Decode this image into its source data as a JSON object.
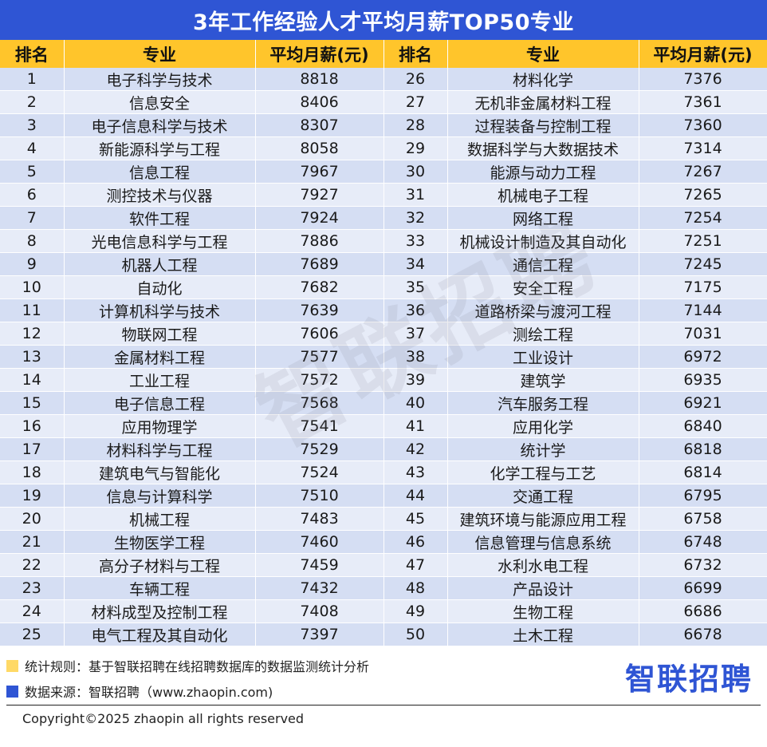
{
  "title": "3年工作经验人才平均月薪TOP50专业",
  "headers": {
    "rank": "排名",
    "major": "专业",
    "salary": "平均月薪(元)"
  },
  "rows": [
    {
      "rank": "1",
      "major": "电子科学与技术",
      "salary": "8818"
    },
    {
      "rank": "2",
      "major": "信息安全",
      "salary": "8406"
    },
    {
      "rank": "3",
      "major": "电子信息科学与技术",
      "salary": "8307"
    },
    {
      "rank": "4",
      "major": "新能源科学与工程",
      "salary": "8058"
    },
    {
      "rank": "5",
      "major": "信息工程",
      "salary": "7967"
    },
    {
      "rank": "6",
      "major": "测控技术与仪器",
      "salary": "7927"
    },
    {
      "rank": "7",
      "major": "软件工程",
      "salary": "7924"
    },
    {
      "rank": "8",
      "major": "光电信息科学与工程",
      "salary": "7886"
    },
    {
      "rank": "9",
      "major": "机器人工程",
      "salary": "7689"
    },
    {
      "rank": "10",
      "major": "自动化",
      "salary": "7682"
    },
    {
      "rank": "11",
      "major": "计算机科学与技术",
      "salary": "7639"
    },
    {
      "rank": "12",
      "major": "物联网工程",
      "salary": "7606"
    },
    {
      "rank": "13",
      "major": "金属材料工程",
      "salary": "7577"
    },
    {
      "rank": "14",
      "major": "工业工程",
      "salary": "7572"
    },
    {
      "rank": "15",
      "major": "电子信息工程",
      "salary": "7568"
    },
    {
      "rank": "16",
      "major": "应用物理学",
      "salary": "7541"
    },
    {
      "rank": "17",
      "major": "材料科学与工程",
      "salary": "7529"
    },
    {
      "rank": "18",
      "major": "建筑电气与智能化",
      "salary": "7524"
    },
    {
      "rank": "19",
      "major": "信息与计算科学",
      "salary": "7510"
    },
    {
      "rank": "20",
      "major": "机械工程",
      "salary": "7483"
    },
    {
      "rank": "21",
      "major": "生物医学工程",
      "salary": "7460"
    },
    {
      "rank": "22",
      "major": "高分子材料与工程",
      "salary": "7459"
    },
    {
      "rank": "23",
      "major": "车辆工程",
      "salary": "7432"
    },
    {
      "rank": "24",
      "major": "材料成型及控制工程",
      "salary": "7408"
    },
    {
      "rank": "25",
      "major": "电气工程及其自动化",
      "salary": "7397"
    },
    {
      "rank": "26",
      "major": "材料化学",
      "salary": "7376"
    },
    {
      "rank": "27",
      "major": "无机非金属材料工程",
      "salary": "7361"
    },
    {
      "rank": "28",
      "major": "过程装备与控制工程",
      "salary": "7360"
    },
    {
      "rank": "29",
      "major": "数据科学与大数据技术",
      "salary": "7314"
    },
    {
      "rank": "30",
      "major": "能源与动力工程",
      "salary": "7267"
    },
    {
      "rank": "31",
      "major": "机械电子工程",
      "salary": "7265"
    },
    {
      "rank": "32",
      "major": "网络工程",
      "salary": "7254"
    },
    {
      "rank": "33",
      "major": "机械设计制造及其自动化",
      "salary": "7251"
    },
    {
      "rank": "34",
      "major": "通信工程",
      "salary": "7245"
    },
    {
      "rank": "35",
      "major": "安全工程",
      "salary": "7175"
    },
    {
      "rank": "36",
      "major": "道路桥梁与渡河工程",
      "salary": "7144"
    },
    {
      "rank": "37",
      "major": "测绘工程",
      "salary": "7031"
    },
    {
      "rank": "38",
      "major": "工业设计",
      "salary": "6972"
    },
    {
      "rank": "39",
      "major": "建筑学",
      "salary": "6935"
    },
    {
      "rank": "40",
      "major": "汽车服务工程",
      "salary": "6921"
    },
    {
      "rank": "41",
      "major": "应用化学",
      "salary": "6840"
    },
    {
      "rank": "42",
      "major": "统计学",
      "salary": "6818"
    },
    {
      "rank": "43",
      "major": "化学工程与工艺",
      "salary": "6814"
    },
    {
      "rank": "44",
      "major": "交通工程",
      "salary": "6795"
    },
    {
      "rank": "45",
      "major": "建筑环境与能源应用工程",
      "salary": "6758"
    },
    {
      "rank": "46",
      "major": "信息管理与信息系统",
      "salary": "6748"
    },
    {
      "rank": "47",
      "major": "水利水电工程",
      "salary": "6732"
    },
    {
      "rank": "48",
      "major": "产品设计",
      "salary": "6699"
    },
    {
      "rank": "49",
      "major": "生物工程",
      "salary": "6686"
    },
    {
      "rank": "50",
      "major": "土木工程",
      "salary": "6678"
    }
  ],
  "watermark": "智联招聘",
  "footer": {
    "rule": "统计规则：基于智联招聘在线招聘数据库的数据监测统计分析",
    "source": "数据来源：智联招聘（www.zhaopin.com)",
    "logo": "智联招聘",
    "copyright": "Copyright©2025 zhaopin all rights reserved"
  },
  "colors": {
    "title_bg": "#2f55d4",
    "header_bg": "#ffc52b",
    "row_odd": "#d5def3",
    "row_even": "#e7ecf8",
    "rule_swatch": "#ffd966",
    "source_swatch": "#2f55d4"
  }
}
